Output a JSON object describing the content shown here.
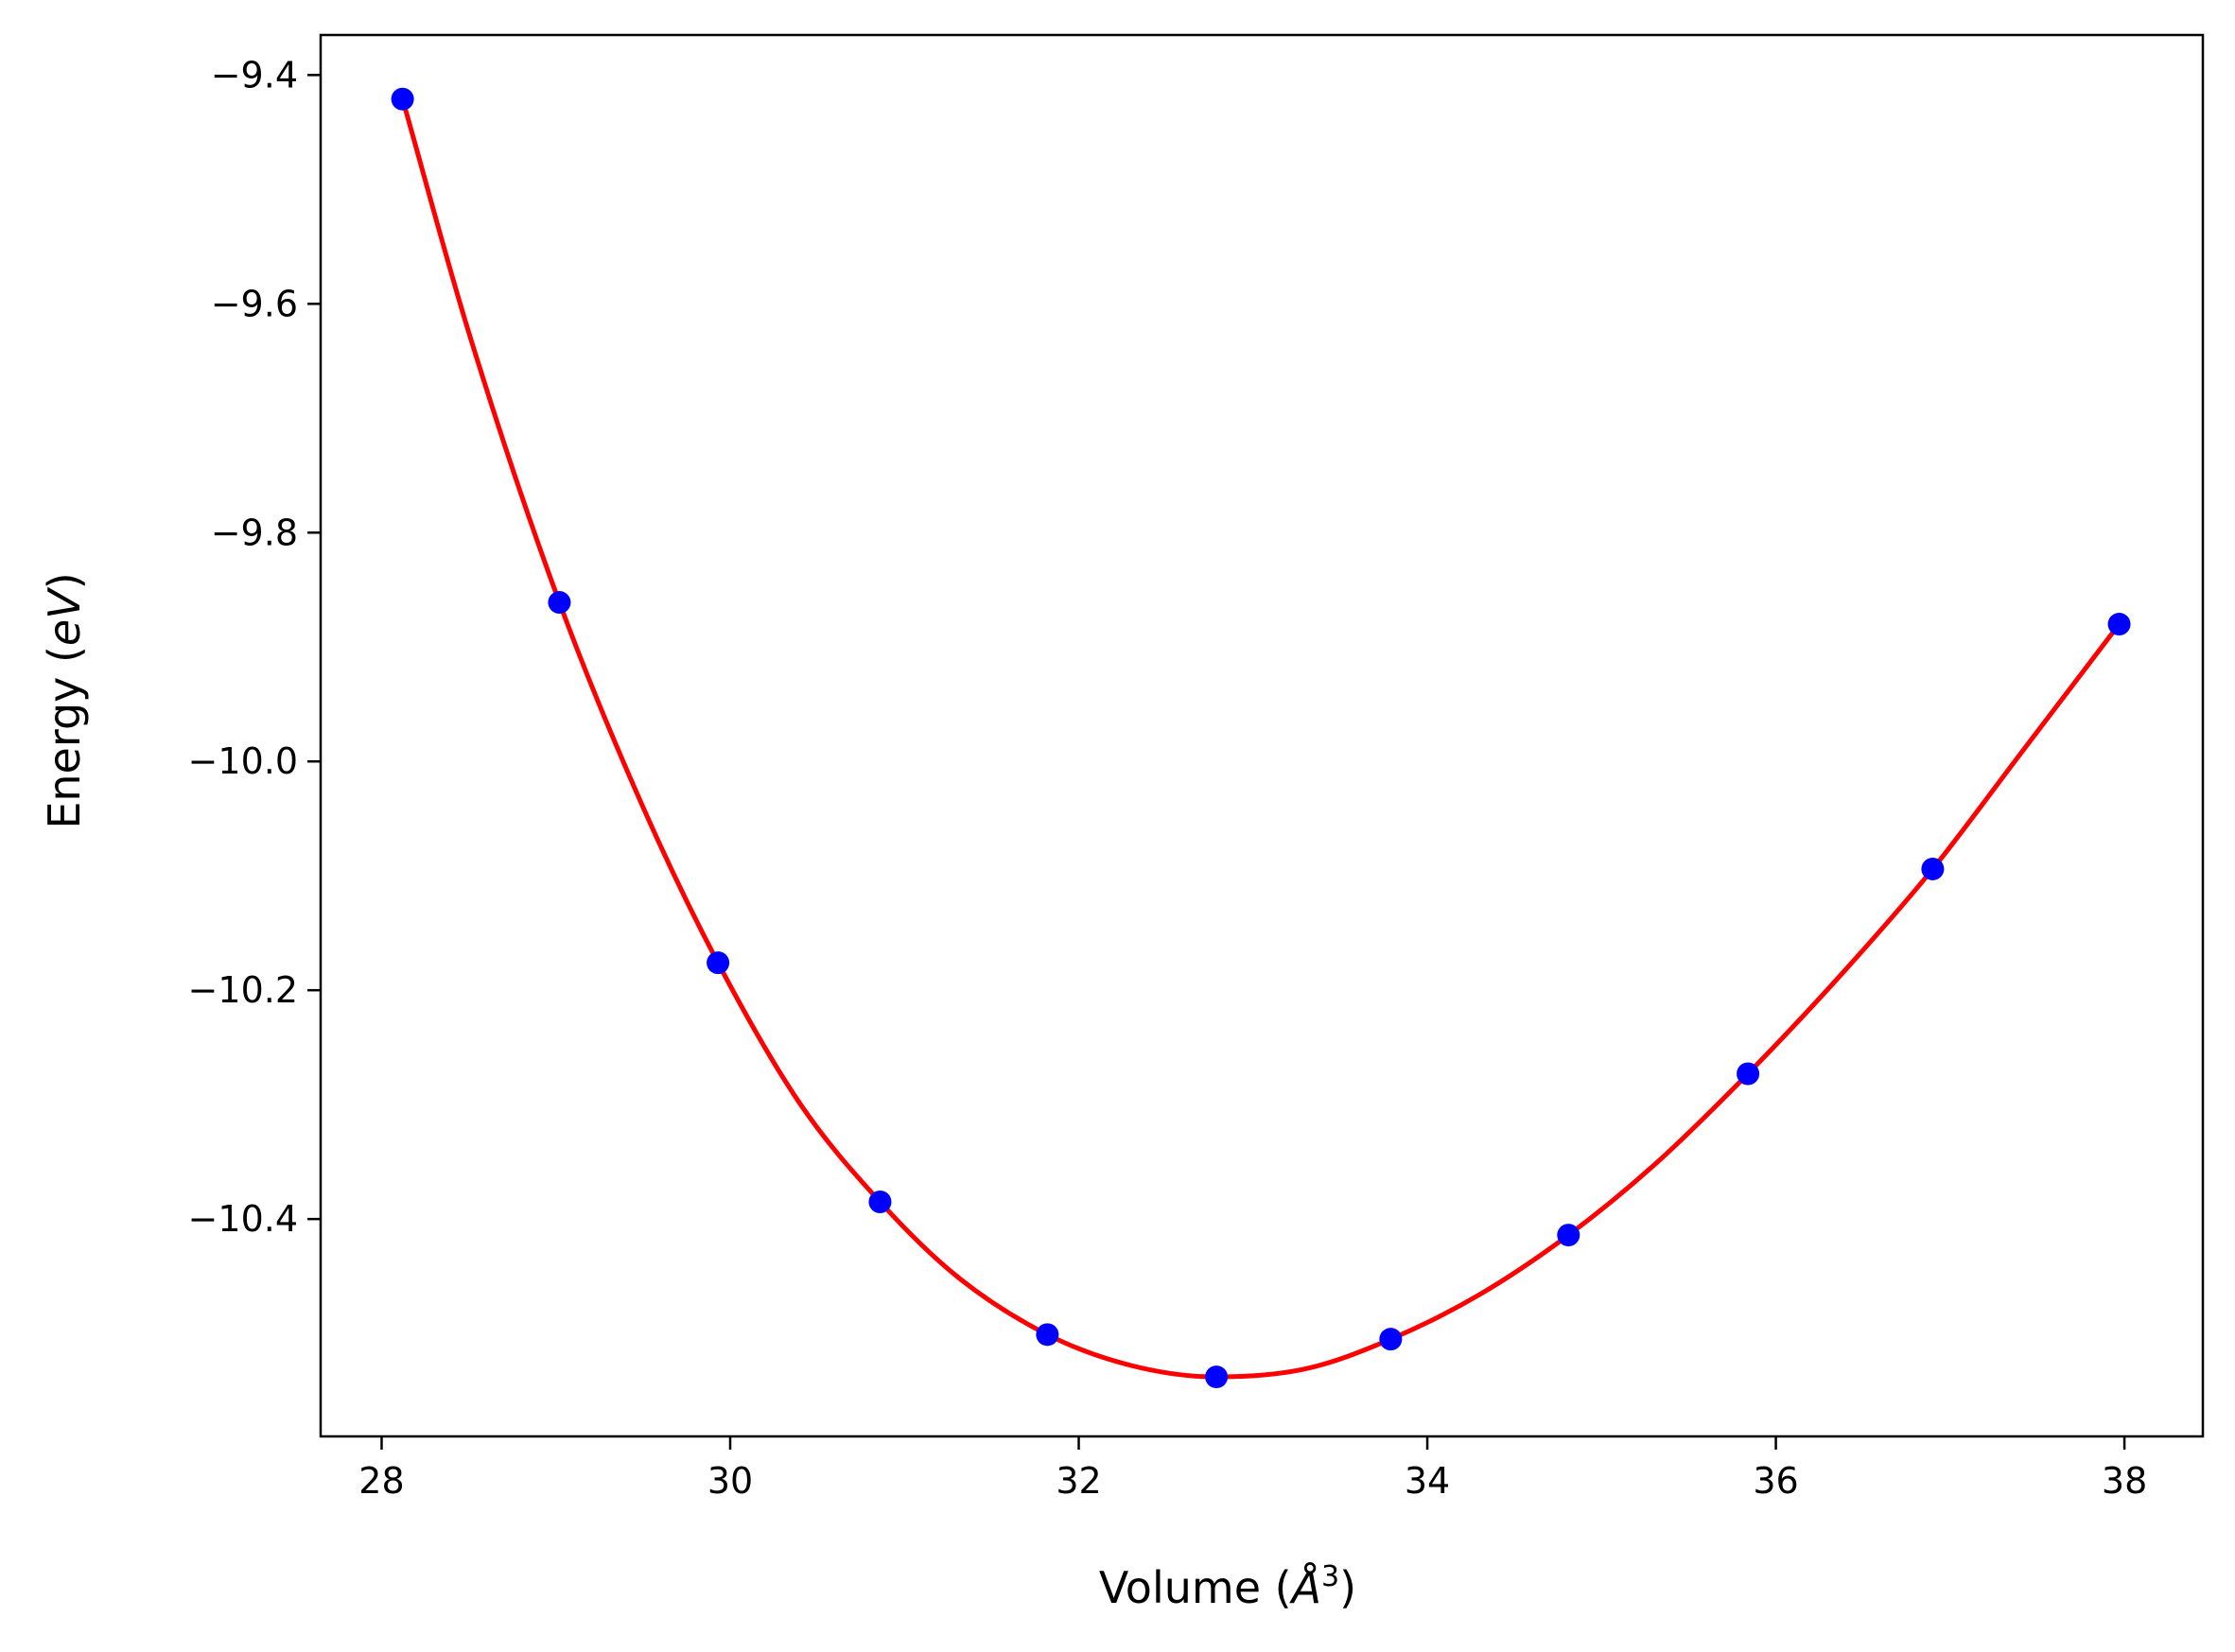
{
  "chart_data": {
    "type": "scatter",
    "title": "",
    "xlabel": "Volume",
    "xlabel_unit": "Å",
    "xlabel_unit_exponent": "3",
    "ylabel": "Energy",
    "ylabel_unit": "eV",
    "xlim": [
      27.65,
      38.45
    ],
    "ylim": [
      -10.59,
      -9.365
    ],
    "xticks": [
      28,
      30,
      32,
      34,
      36,
      38
    ],
    "xtick_labels": [
      "28",
      "30",
      "32",
      "34",
      "36",
      "38"
    ],
    "yticks": [
      -9.4,
      -9.6,
      -9.8,
      -10.0,
      -10.2,
      -10.4
    ],
    "ytick_labels": [
      "−9.4",
      "−9.6",
      "−9.8",
      "−10.0",
      "−10.2",
      "−10.4"
    ],
    "grid": false,
    "legend": "none",
    "series": [
      {
        "kind": "points",
        "color": "#0000ff",
        "x": [
          28.12,
          29.02,
          29.93,
          30.86,
          31.82,
          32.79,
          33.79,
          34.81,
          35.84,
          36.9,
          37.97
        ],
        "y": [
          -9.421,
          -9.861,
          -10.176,
          -10.385,
          -10.501,
          -10.538,
          -10.505,
          -10.414,
          -10.273,
          -10.094,
          -9.88
        ]
      },
      {
        "kind": "fit-line",
        "color": "#ff0000",
        "x": [
          28.12,
          28.5,
          29.02,
          29.5,
          29.93,
          30.4,
          30.86,
          31.3,
          31.82,
          32.3,
          32.79,
          33.3,
          33.79,
          34.3,
          34.81,
          35.3,
          35.84,
          36.4,
          36.9,
          37.4,
          37.97
        ],
        "y": [
          -9.421,
          -9.625,
          -9.861,
          -10.04,
          -10.176,
          -10.299,
          -10.385,
          -10.45,
          -10.501,
          -10.528,
          -10.538,
          -10.531,
          -10.505,
          -10.466,
          -10.414,
          -10.353,
          -10.273,
          -10.182,
          -10.094,
          -9.994,
          -9.88
        ]
      }
    ]
  }
}
